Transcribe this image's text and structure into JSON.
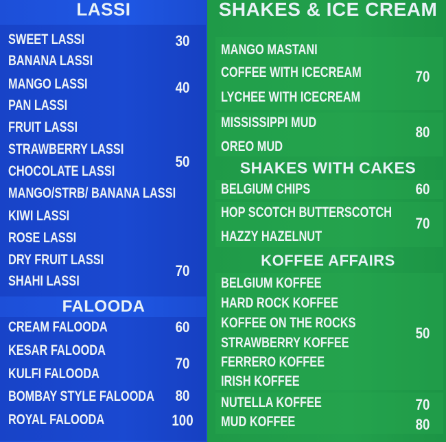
{
  "colors": {
    "lassi_panel": "#1f57e4",
    "shakes_panel": "#22a04c",
    "text": "#eef4f6"
  },
  "left": {
    "sections": [
      {
        "title": "LASSI",
        "groups": [
          {
            "items": [
              "SWEET LASSI"
            ],
            "price": "30"
          },
          {
            "items": [
              "BANANA LASSI",
              "MANGO LASSI",
              "PAN LASSI"
            ],
            "price": "40"
          },
          {
            "items": [
              "FRUIT LASSI",
              "STRAWBERRY LASSI",
              "CHOCOLATE LASSI",
              "MANGO/STRB/ BANANA LASSI",
              "KIWI LASSI"
            ],
            "price": "50"
          },
          {
            "items": [
              "ROSE LASSI",
              "DRY FRUIT LASSI",
              "SHAHI LASSI"
            ],
            "price": "70"
          }
        ]
      },
      {
        "title": "FALOODA",
        "groups": [
          {
            "items": [
              "CREAM FALOODA"
            ],
            "price": "60"
          },
          {
            "items": [
              "KESAR FALOODA",
              "KULFI FALOODA"
            ],
            "price": "70"
          },
          {
            "items": [
              "BOMBAY STYLE FALOODA"
            ],
            "price": "80"
          },
          {
            "items": [
              "ROYAL FALOODA"
            ],
            "price": "100"
          }
        ]
      }
    ]
  },
  "right": {
    "sections": [
      {
        "title": "SHAKES & ICE CREAM",
        "groups": [
          {
            "items": [
              "MANGO MASTANI",
              "COFFEE WITH ICECREAM",
              "LYCHEE WITH ICECREAM"
            ],
            "price": "70"
          },
          {
            "items": [
              "MISSISSIPPI MUD",
              "OREO MUD"
            ],
            "price": "80"
          }
        ]
      },
      {
        "title": "SHAKES WITH CAKES",
        "groups": [
          {
            "items": [
              "BELGIUM CHIPS"
            ],
            "price": "60"
          },
          {
            "items": [
              "HOP SCOTCH BUTTERSCOTCH",
              "HAZZY HAZELNUT"
            ],
            "price": "70"
          }
        ]
      },
      {
        "title": "KOFFEE AFFAIRS",
        "groups": [
          {
            "items": [
              "BELGIUM KOFFEE",
              "HARD ROCK KOFFEE",
              "KOFFEE ON THE ROCKS",
              "STRAWBERRY KOFFEE",
              "FERRERO KOFFEE",
              "IRISH KOFFEE"
            ],
            "price": "50"
          },
          {
            "items": [
              "NUTELLA KOFFEE"
            ],
            "price": "70"
          },
          {
            "items": [
              "MUD KOFFEE"
            ],
            "price": "80"
          }
        ]
      }
    ]
  }
}
